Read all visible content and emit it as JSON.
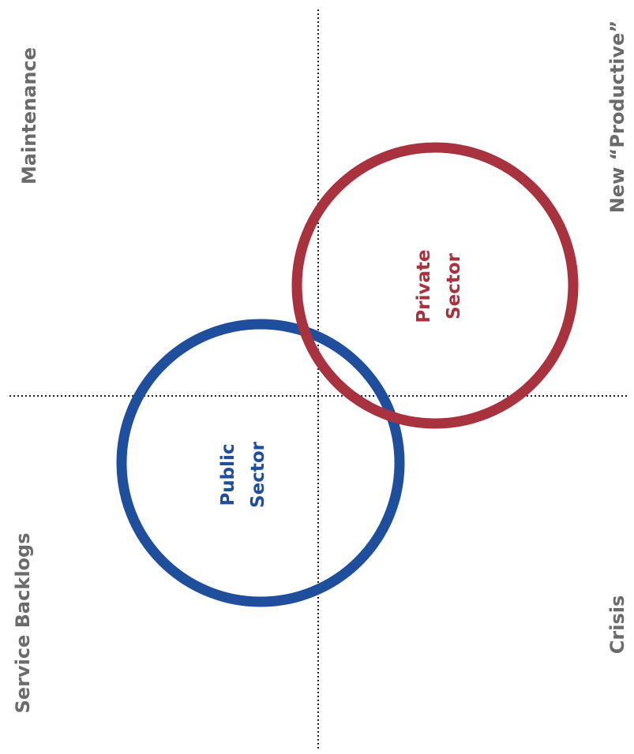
{
  "quadrants": {
    "top_left": "Maintenance",
    "top_right": "New “Productive”",
    "bottom_left": "Service Backlogs",
    "bottom_right": "Crisis"
  },
  "circles": {
    "public": {
      "line1": "Public",
      "line2": "Sector",
      "color": "#1f4e9c"
    },
    "private": {
      "line1": "Private",
      "line2": "Sector",
      "color": "#a8323d"
    }
  },
  "colors": {
    "quadrant_text": "#6b6b6b",
    "axis_line": "#222222"
  }
}
